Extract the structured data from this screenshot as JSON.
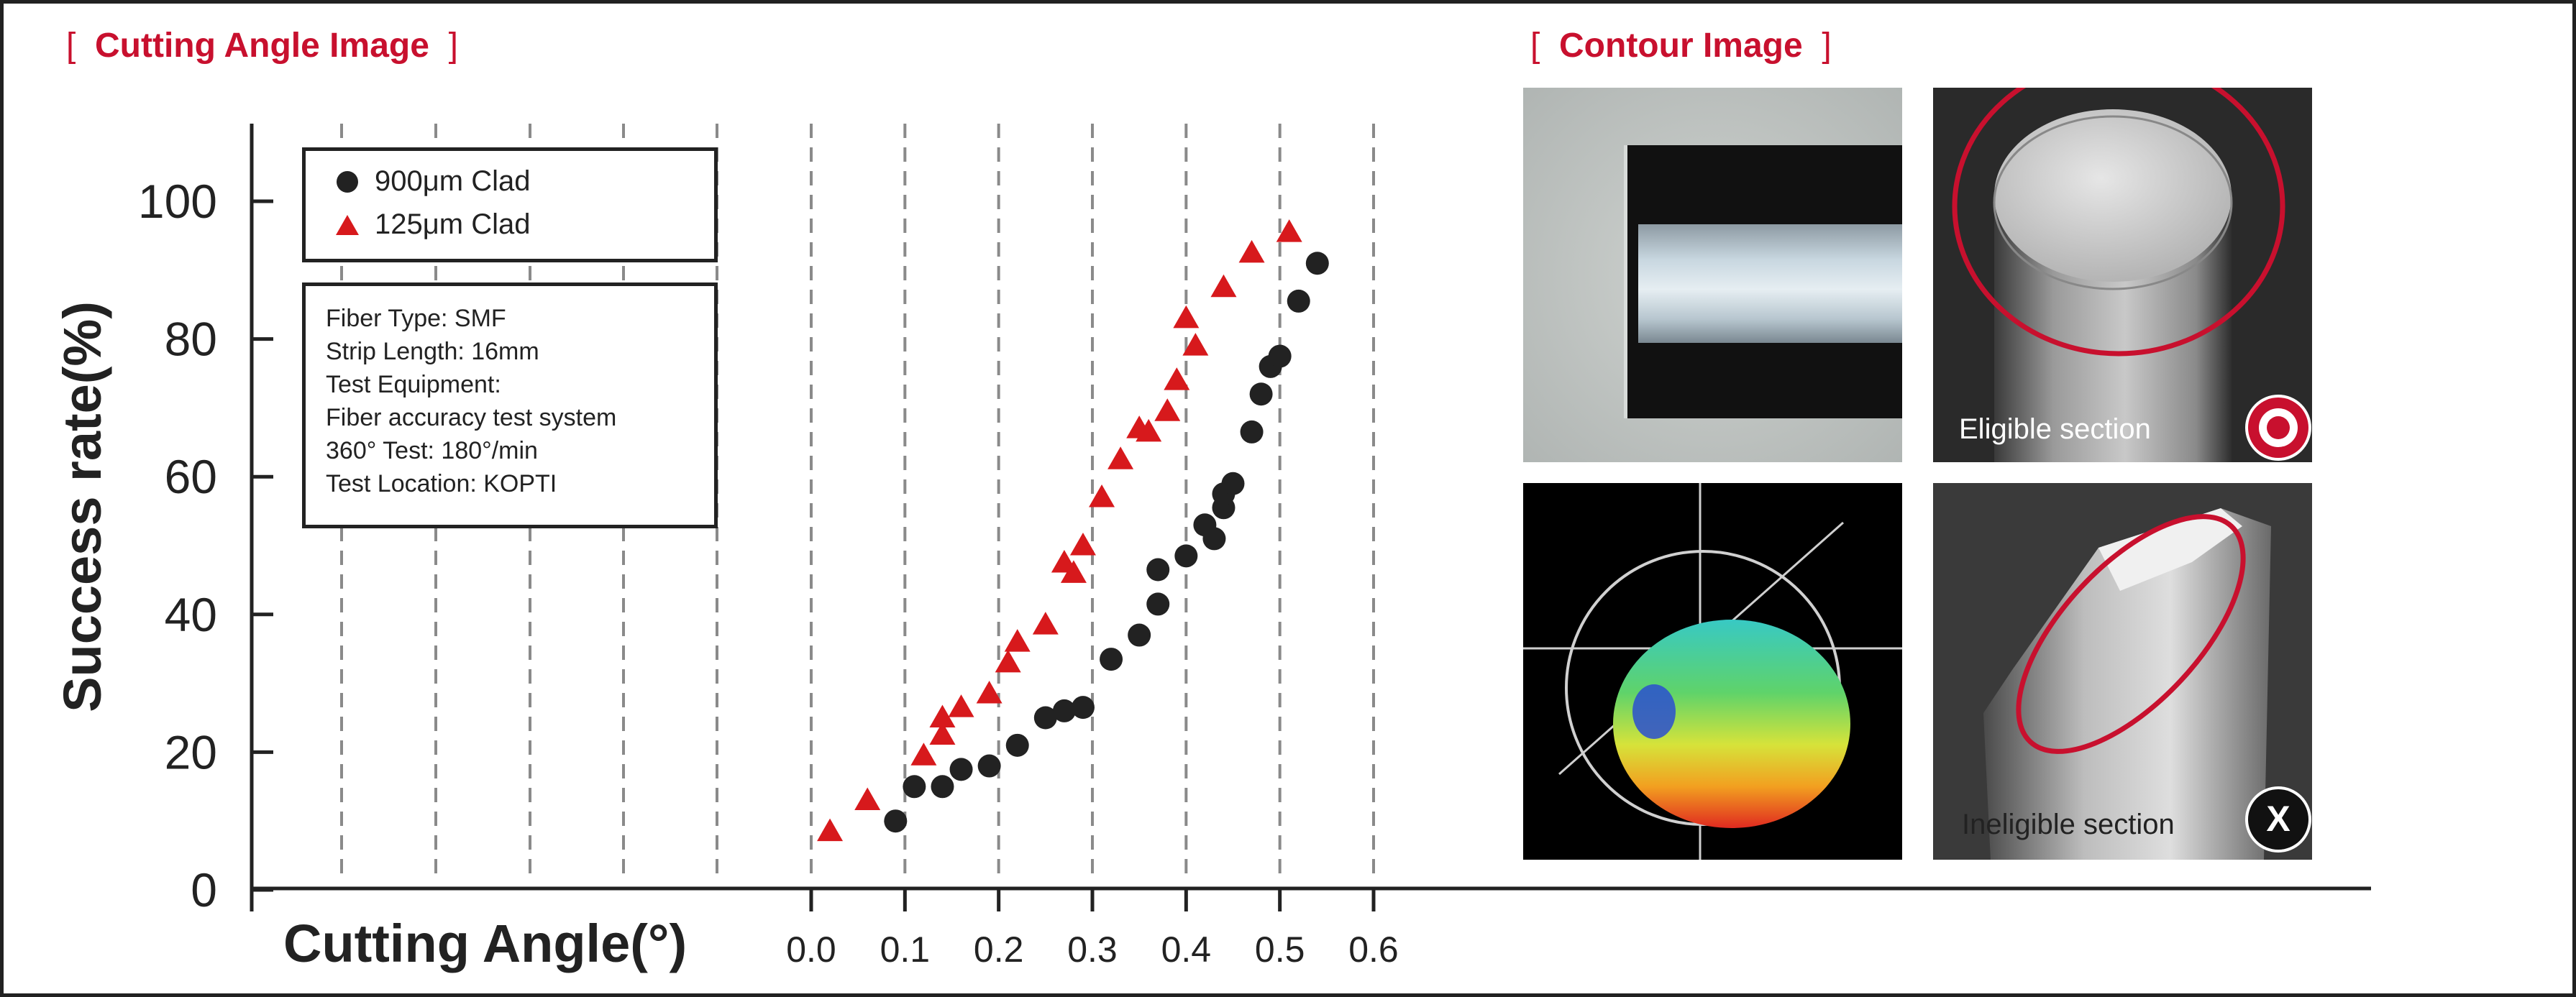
{
  "cutting_section": {
    "title": "Cutting Angle Image"
  },
  "contour_section": {
    "title": "Contour Image"
  },
  "chart_data": {
    "type": "scatter",
    "xlabel": "Cutting Angle(°)",
    "ylabel": "Success rate(%)",
    "xlim": [
      0.0,
      0.6
    ],
    "ylim": [
      0,
      100
    ],
    "x_ticks": [
      "0.0",
      "0.1",
      "0.2",
      "0.3",
      "0.4",
      "0.5",
      "0.6"
    ],
    "y_ticks": [
      "0",
      "20",
      "40",
      "60",
      "80",
      "100"
    ],
    "grid": "vertical dashed",
    "legend": "top-left",
    "series": [
      {
        "name": "900μm Clad",
        "marker": "circle",
        "color": "#222222",
        "points": [
          [
            0.09,
            10
          ],
          [
            0.11,
            15
          ],
          [
            0.14,
            15
          ],
          [
            0.16,
            17.5
          ],
          [
            0.19,
            18
          ],
          [
            0.22,
            21
          ],
          [
            0.25,
            25
          ],
          [
            0.27,
            26
          ],
          [
            0.29,
            26.5
          ],
          [
            0.32,
            33.5
          ],
          [
            0.35,
            37
          ],
          [
            0.37,
            41.5
          ],
          [
            0.37,
            46.5
          ],
          [
            0.4,
            48.5
          ],
          [
            0.42,
            53
          ],
          [
            0.43,
            51
          ],
          [
            0.44,
            55.5
          ],
          [
            0.44,
            57.5
          ],
          [
            0.45,
            59
          ],
          [
            0.47,
            66.5
          ],
          [
            0.48,
            72
          ],
          [
            0.49,
            76
          ],
          [
            0.5,
            77.5
          ],
          [
            0.52,
            85.5
          ],
          [
            0.54,
            91
          ]
        ]
      },
      {
        "name": "125μm Clad",
        "marker": "triangle",
        "color": "#d7191c",
        "points": [
          [
            0.02,
            8.5
          ],
          [
            0.06,
            13
          ],
          [
            0.12,
            19.5
          ],
          [
            0.14,
            22.5
          ],
          [
            0.14,
            25
          ],
          [
            0.16,
            26.5
          ],
          [
            0.19,
            28.5
          ],
          [
            0.21,
            33
          ],
          [
            0.22,
            36
          ],
          [
            0.25,
            38.5
          ],
          [
            0.27,
            47.5
          ],
          [
            0.28,
            46
          ],
          [
            0.29,
            50
          ],
          [
            0.31,
            57
          ],
          [
            0.33,
            62.5
          ],
          [
            0.35,
            67
          ],
          [
            0.36,
            66.5
          ],
          [
            0.38,
            69.5
          ],
          [
            0.39,
            74
          ],
          [
            0.4,
            83
          ],
          [
            0.41,
            79
          ],
          [
            0.44,
            87.5
          ],
          [
            0.47,
            92.5
          ],
          [
            0.51,
            95.5
          ]
        ]
      }
    ]
  },
  "test_info": {
    "lines": [
      "Fiber Type: SMF",
      "Strip Length: 16mm",
      "Test Equipment:",
      "Fiber accuracy test system",
      "360° Test: 180°/min",
      "Test Location: KOPTI"
    ]
  },
  "contour_images": {
    "eligible_caption": "Eligible section",
    "ineligible_caption": "Ineligible section",
    "ineligible_icon": "x-circle-icon",
    "eligible_icon": "target-icon",
    "accent_color": "#c8102e"
  }
}
